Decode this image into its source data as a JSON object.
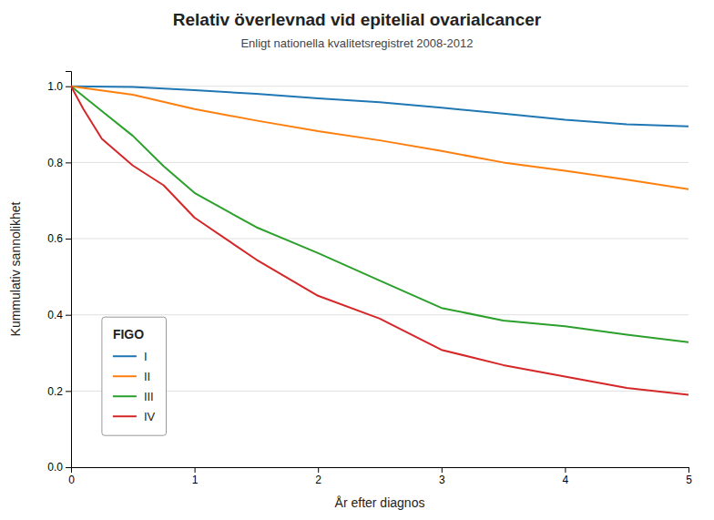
{
  "chart_data": {
    "type": "line",
    "title": "Relativ överlevnad vid epitelial ovarialcancer",
    "subtitle": "Enligt nationella kvalitetsregistret 2008-2012",
    "x_label": "År efter diagnos",
    "y_label": "Kummulativ sannolikhet",
    "legend_title": "FIGO",
    "legend": "lower left",
    "grid": true,
    "xlim": [
      0,
      5
    ],
    "ylim": [
      0.0,
      1.04
    ],
    "xticks": [
      0,
      1,
      2,
      3,
      4,
      5
    ],
    "yticks": [
      {
        "value": 0.0,
        "label": "0.0"
      },
      0.2,
      0.4,
      0.6,
      0.8,
      {
        "value": 1.0,
        "label": "1.0"
      }
    ],
    "series": [
      {
        "name": "I",
        "x": [
          0.0,
          0.5,
          1.0,
          1.5,
          2.0,
          2.5,
          3.0,
          3.5,
          4.0,
          4.5,
          5.0
        ],
        "values": [
          1.0,
          0.998,
          0.99,
          0.98,
          0.968,
          0.958,
          0.944,
          0.928,
          0.912,
          0.9,
          0.895
        ]
      },
      {
        "name": "II",
        "x": [
          0.0,
          0.5,
          1.0,
          1.5,
          2.0,
          2.5,
          3.0,
          3.5,
          4.0,
          4.5,
          5.0
        ],
        "values": [
          1.0,
          0.978,
          0.94,
          0.91,
          0.882,
          0.858,
          0.83,
          0.8,
          0.778,
          0.755,
          0.73
        ]
      },
      {
        "name": "III",
        "x": [
          0.0,
          0.25,
          0.5,
          0.75,
          1.0,
          1.5,
          2.0,
          2.5,
          3.0,
          3.5,
          4.0,
          4.5,
          5.0
        ],
        "values": [
          1.0,
          0.935,
          0.87,
          0.79,
          0.72,
          0.63,
          0.562,
          0.49,
          0.418,
          0.385,
          0.37,
          0.348,
          0.328
        ]
      },
      {
        "name": "IV",
        "x": [
          0.0,
          0.1,
          0.25,
          0.5,
          0.75,
          1.0,
          1.5,
          2.0,
          2.5,
          3.0,
          3.5,
          4.0,
          4.5,
          5.0
        ],
        "values": [
          1.0,
          0.94,
          0.862,
          0.792,
          0.74,
          0.655,
          0.545,
          0.45,
          0.39,
          0.308,
          0.268,
          0.238,
          0.208,
          0.19
        ]
      }
    ]
  }
}
